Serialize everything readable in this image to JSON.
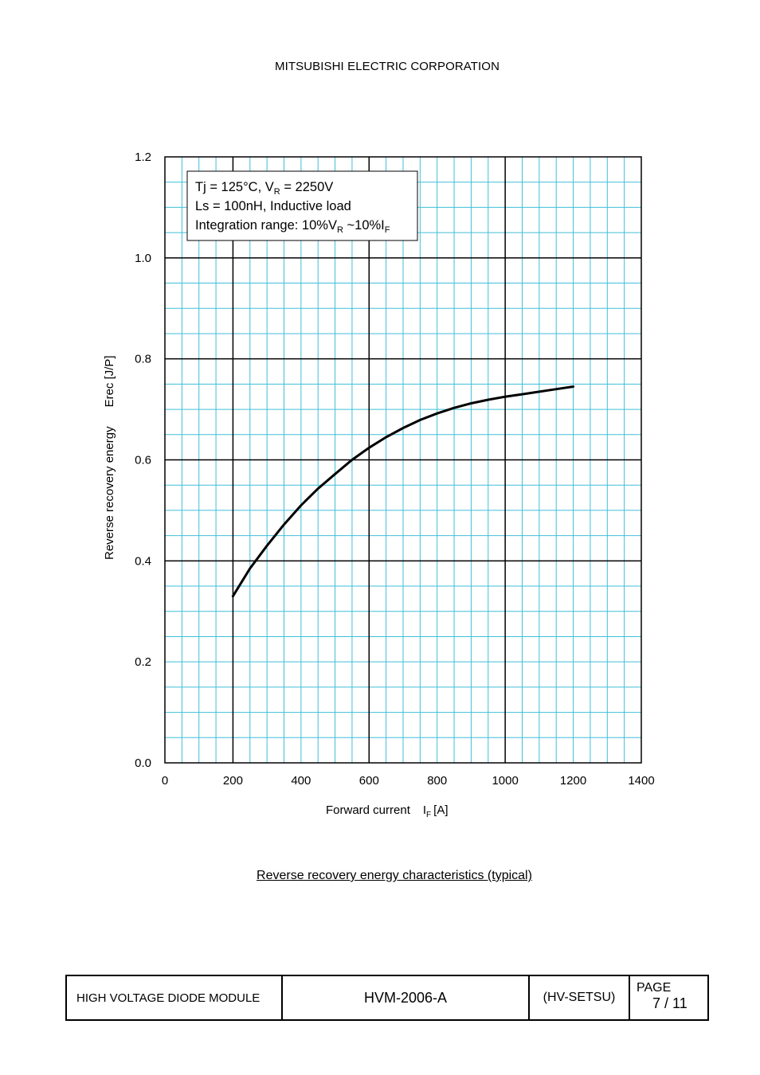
{
  "header": {
    "company": "MITSUBISHI ELECTRIC CORPORATION"
  },
  "chart_data": {
    "type": "line",
    "title": "",
    "xlabel": "Forward current",
    "xlabel_symbol": "I",
    "xlabel_sub": "F",
    "xlabel_unit": "[A]",
    "ylabel": "Reverse recovery energy",
    "ylabel_symbol": "Erec [J/P]",
    "xlim": [
      0,
      1400
    ],
    "ylim": [
      0,
      1.2
    ],
    "xticks": [
      "0",
      "200",
      "400",
      "600",
      "800",
      "1000",
      "1200",
      "1400"
    ],
    "yticks": [
      "0.0",
      "0.2",
      "0.4",
      "0.6",
      "0.8",
      "1.0",
      "1.2"
    ],
    "grid": true,
    "grid_minor_color": "#3fbfd8",
    "grid_major_color": "#000000",
    "series": [
      {
        "color": "#000000",
        "x": [
          200,
          250,
          300,
          350,
          400,
          450,
          500,
          550,
          600,
          650,
          700,
          750,
          800,
          850,
          900,
          950,
          1000,
          1050,
          1100,
          1150,
          1200
        ],
        "y": [
          0.33,
          0.385,
          0.43,
          0.472,
          0.51,
          0.543,
          0.572,
          0.6,
          0.624,
          0.645,
          0.663,
          0.679,
          0.692,
          0.703,
          0.712,
          0.719,
          0.725,
          0.73,
          0.735,
          0.74,
          0.745
        ]
      }
    ],
    "annotation": {
      "line1": {
        "a": "Tj = 125°C, V",
        "sub": "R",
        "b": " = 2250V"
      },
      "line2": "Ls = 100nH, Inductive load",
      "line3": {
        "a": "Integration range: 10%V",
        "sub1": "R",
        "b": " ~10%I",
        "sub2": "F"
      }
    }
  },
  "caption": "Reverse recovery energy characteristics (typical)",
  "footer": {
    "product": "HIGH VOLTAGE DIODE MODULE",
    "doc_number": "HVM-2006-A",
    "code": "(HV-SETSU)",
    "page_label": "PAGE",
    "page_number": "7 / 11"
  }
}
